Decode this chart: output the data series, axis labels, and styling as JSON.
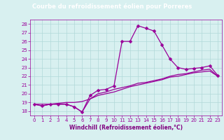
{
  "title": "Courbe du refroidissement éolien pour Porreres",
  "xlabel": "Windchill (Refroidissement éolien,°C)",
  "hours": [
    0,
    1,
    2,
    3,
    4,
    5,
    6,
    7,
    8,
    9,
    10,
    11,
    12,
    13,
    14,
    15,
    16,
    17,
    18,
    19,
    20,
    21,
    22,
    23
  ],
  "temp": [
    18.8,
    18.6,
    18.8,
    18.8,
    18.8,
    18.5,
    17.9,
    19.8,
    20.4,
    20.5,
    20.9,
    26.0,
    26.0,
    27.8,
    27.5,
    27.2,
    25.6,
    24.0,
    23.0,
    22.8,
    22.9,
    23.0,
    23.2,
    22.1
  ],
  "windchill": [
    18.8,
    18.6,
    18.8,
    18.8,
    18.8,
    18.5,
    17.9,
    19.4,
    20.0,
    20.2,
    20.5,
    20.7,
    20.9,
    21.2,
    21.3,
    21.5,
    21.7,
    22.0,
    22.2,
    22.3,
    22.5,
    22.7,
    22.8,
    22.0
  ],
  "windchill2": [
    18.8,
    18.8,
    18.8,
    18.9,
    19.0,
    19.0,
    19.1,
    19.4,
    19.8,
    20.0,
    20.2,
    20.5,
    20.8,
    21.0,
    21.2,
    21.4,
    21.6,
    21.9,
    22.0,
    22.2,
    22.4,
    22.5,
    22.6,
    22.0
  ],
  "ylim": [
    17.5,
    28.5
  ],
  "yticks": [
    18,
    19,
    20,
    21,
    22,
    23,
    24,
    25,
    26,
    27,
    28
  ],
  "line_color": "#990099",
  "bg_color": "#d8f0f0",
  "grid_color": "#b0d8d8",
  "title_bg": "#800080",
  "title_fg": "#ffffff",
  "xlabel_color": "#800080",
  "marker": "D",
  "marker_size": 2.5,
  "title_fontsize": 6.0,
  "tick_fontsize": 5.0,
  "xlabel_fontsize": 5.5
}
